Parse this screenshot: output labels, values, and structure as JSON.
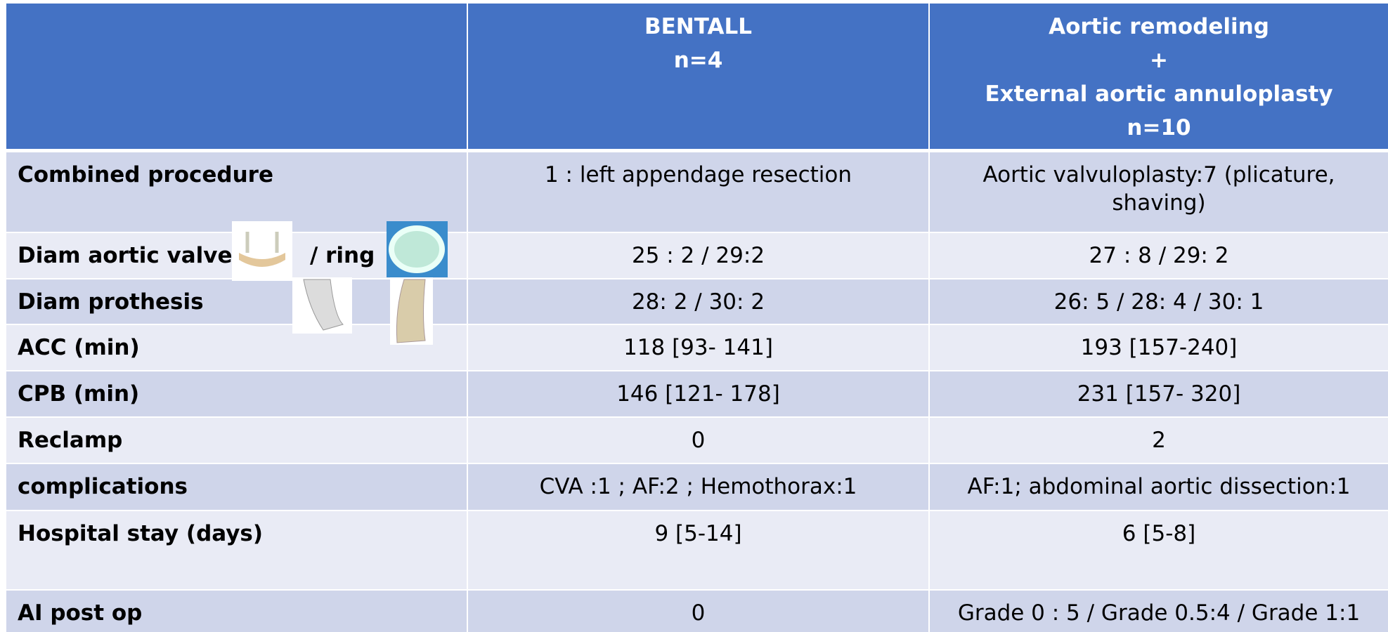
{
  "table": {
    "header": [
      [
        "BENTALL",
        "n=4"
      ],
      [
        "Aortic remodeling",
        "+",
        "External aortic annuloplasty",
        "n=10"
      ]
    ],
    "rows": [
      {
        "label": [
          "Combined procedure"
        ],
        "cells": [
          "1 : left appendage resection",
          "Aortic valvuloplasty:7 (plicature, shaving)"
        ]
      },
      {
        "label": [
          "Diam aortic valve",
          "/ ring"
        ],
        "cells": [
          "25 : 2 /  29:2",
          "27 : 8 / 29: 2"
        ]
      },
      {
        "label": [
          "Diam prothesis"
        ],
        "cells": [
          "28: 2 / 30: 2",
          "26: 5 / 28: 4 / 30: 1"
        ]
      },
      {
        "label": [
          "ACC (min)"
        ],
        "cells": [
          "118 [93- 141]",
          "193 [157-240]"
        ]
      },
      {
        "label": [
          "CPB (min)"
        ],
        "cells": [
          "146 [121- 178]",
          "231 [157-  320]"
        ]
      },
      {
        "label": [
          "Reclamp"
        ],
        "cells": [
          "0",
          "2"
        ]
      },
      {
        "label": [
          "complications"
        ],
        "cells": [
          "CVA :1 ;  AF:2 ;  Hemothorax:1",
          "AF:1; abdominal aortic dissection:1"
        ]
      },
      {
        "label": [
          "Hospital stay (days)"
        ],
        "cells": [
          "9 [5-14]",
          "6 [5-8]"
        ]
      },
      {
        "label": [
          "AI post op"
        ],
        "cells": [
          "0",
          "Grade 0 : 5 / Grade 0.5:4 / Grade 1:1"
        ]
      }
    ]
  }
}
